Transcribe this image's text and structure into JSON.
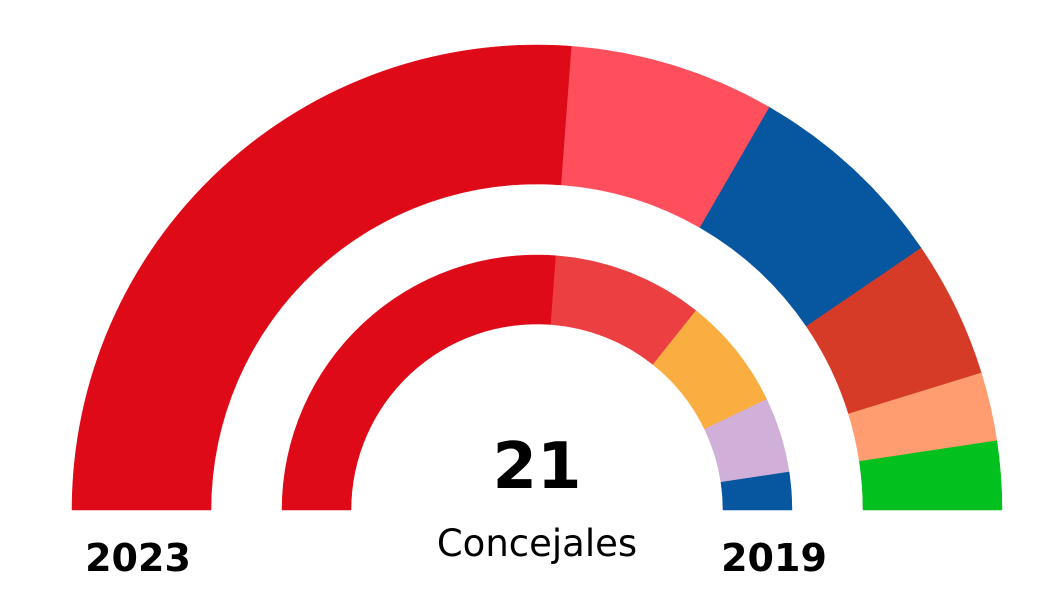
{
  "chart_data": {
    "type": "pie",
    "subtype": "double-semicircle-parliament",
    "total_seats": 21,
    "center_value": "21",
    "center_label": "Concejales",
    "rings": [
      {
        "name": "2023",
        "label": "2023",
        "position": "outer",
        "segments": [
          {
            "seats": 11,
            "color": "#DF0A18"
          },
          {
            "seats": 3,
            "color": "#FF4F5D"
          },
          {
            "seats": 3,
            "color": "#0656A0"
          },
          {
            "seats": 2,
            "color": "#D63B27"
          },
          {
            "seats": 1,
            "color": "#FF9C70"
          },
          {
            "seats": 1,
            "color": "#02C11E"
          }
        ]
      },
      {
        "name": "2019",
        "label": "2019",
        "position": "inner",
        "segments": [
          {
            "seats": 11,
            "color": "#DF0A18"
          },
          {
            "seats": 4,
            "color": "#EC3F41"
          },
          {
            "seats": 3,
            "color": "#FAAE41"
          },
          {
            "seats": 2,
            "color": "#D0B0D9"
          },
          {
            "seats": 1,
            "color": "#0656A0"
          }
        ]
      }
    ]
  }
}
